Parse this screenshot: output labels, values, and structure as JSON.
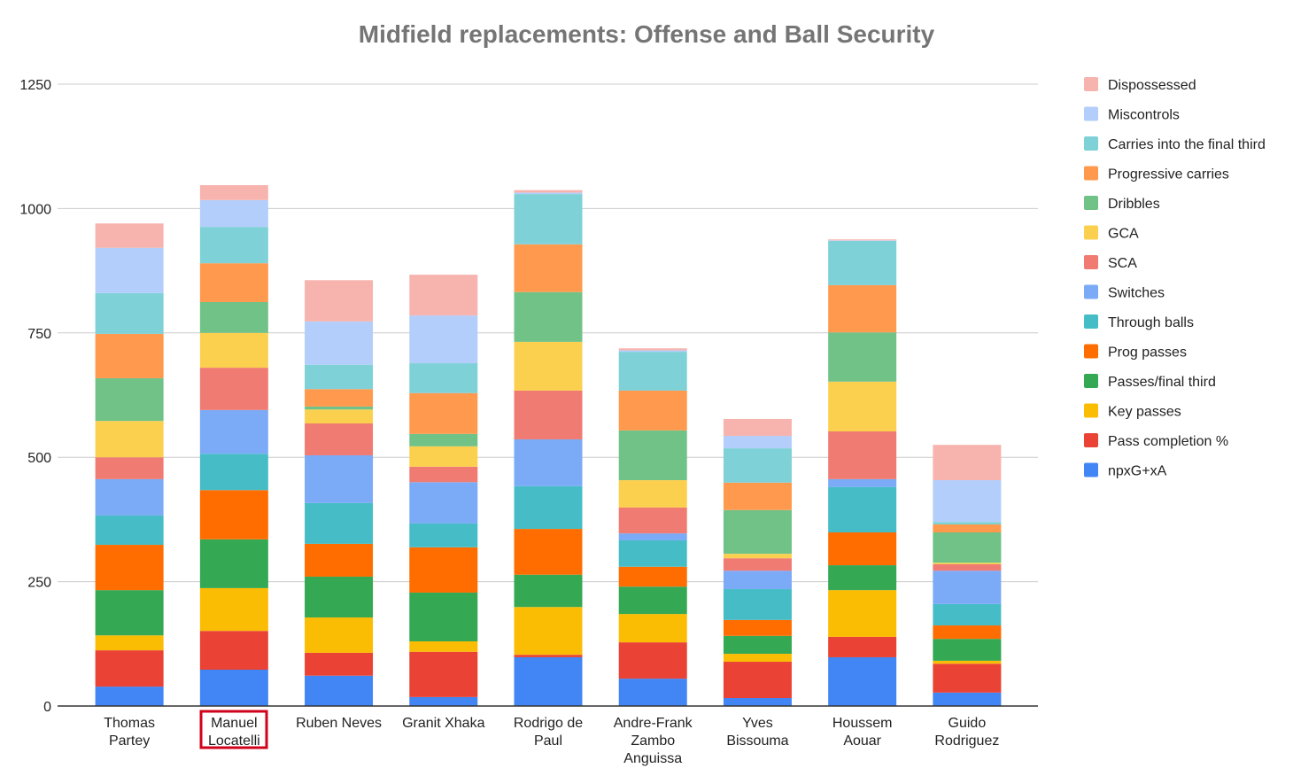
{
  "chart_data": {
    "type": "stacked_bar",
    "title": "Midfield replacements: Offense and Ball Security",
    "categories": [
      "Thomas Partey",
      "Manuel Locatelli",
      "Ruben Neves",
      "Granit Xhaka",
      "Rodrigo de Paul",
      "Andre-Frank Zambo Anguissa",
      "Yves Bissouma",
      "Houssem Aouar",
      "Guido Rodriguez"
    ],
    "ylim": [
      0,
      1250
    ],
    "yticks": [
      0,
      250,
      500,
      750,
      1000,
      1250
    ],
    "grid": true,
    "legend": "right",
    "series": [
      {
        "name": "npxG+xA",
        "color": "#4285f4",
        "values": [
          39,
          73,
          61,
          18,
          98,
          55,
          16,
          98,
          27
        ]
      },
      {
        "name": "Pass completion %",
        "color": "#ea4335",
        "values": [
          73,
          78,
          46,
          91,
          5,
          73,
          73,
          41,
          58
        ]
      },
      {
        "name": "Key passes",
        "color": "#fbbc04",
        "values": [
          30,
          86,
          71,
          21,
          96,
          57,
          16,
          94,
          6
        ]
      },
      {
        "name": "Passes/final third",
        "color": "#34a853",
        "values": [
          91,
          98,
          82,
          98,
          65,
          55,
          36,
          50,
          44
        ]
      },
      {
        "name": "Prog passes",
        "color": "#ff6d01",
        "values": [
          91,
          99,
          66,
          91,
          92,
          40,
          32,
          66,
          27
        ]
      },
      {
        "name": "Through balls",
        "color": "#46bdc6",
        "values": [
          59,
          73,
          82,
          48,
          86,
          53,
          62,
          91,
          43
        ]
      },
      {
        "name": "Switches",
        "color": "#7baaf7",
        "values": [
          73,
          88,
          96,
          83,
          94,
          14,
          37,
          16,
          67
        ]
      },
      {
        "name": "SCA",
        "color": "#f07b72",
        "values": [
          44,
          85,
          64,
          31,
          98,
          52,
          25,
          96,
          13
        ]
      },
      {
        "name": "GCA",
        "color": "#fcd04f",
        "values": [
          73,
          70,
          28,
          41,
          98,
          55,
          9,
          100,
          3
        ]
      },
      {
        "name": "Dribbles",
        "color": "#71c287",
        "values": [
          86,
          62,
          6,
          25,
          100,
          100,
          88,
          99,
          61
        ]
      },
      {
        "name": "Progressive carries",
        "color": "#ff994d",
        "values": [
          89,
          78,
          35,
          82,
          96,
          80,
          55,
          95,
          16
        ]
      },
      {
        "name": "Carries into the final third",
        "color": "#7ed1d7",
        "values": [
          82,
          73,
          49,
          60,
          101,
          78,
          69,
          89,
          5
        ]
      },
      {
        "name": "Miscontrols",
        "color": "#b3cefb",
        "values": [
          91,
          54,
          87,
          96,
          3,
          3,
          25,
          1,
          84
        ]
      },
      {
        "name": "Dispossessed",
        "color": "#f7b4ae",
        "values": [
          49,
          30,
          83,
          82,
          5,
          4,
          34,
          2,
          71
        ]
      }
    ]
  }
}
